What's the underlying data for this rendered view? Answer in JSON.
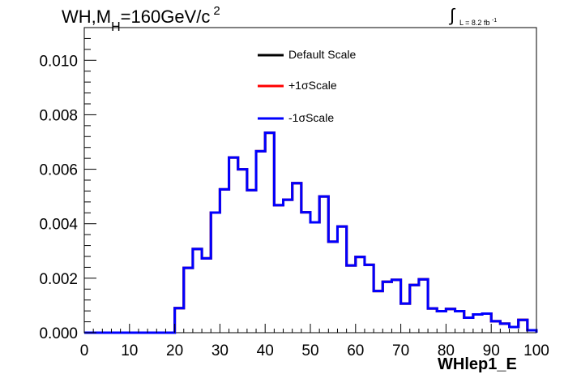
{
  "title_prefix": "WH,M",
  "title_sub": "H",
  "title_value": "=160GeV/c",
  "title_sup": "2",
  "lumi_label": "L = 8.2 fb",
  "lumi_exp": "-1",
  "colors": {
    "default": "#000000",
    "plus": "#ff0000",
    "minus": "#0000ff",
    "frame": "#000000"
  },
  "chart_data": {
    "type": "line",
    "xlabel": "WHlep1_E",
    "xlim": [
      0,
      100
    ],
    "ylim": [
      0,
      0.0112
    ],
    "x_ticks": [
      0,
      10,
      20,
      30,
      40,
      50,
      60,
      70,
      80,
      90,
      100
    ],
    "x_tick_labels": [
      "0",
      "10",
      "20",
      "30",
      "40",
      "50",
      "60",
      "70",
      "80",
      "90",
      "100"
    ],
    "y_ticks": [
      0,
      0.002,
      0.004,
      0.006,
      0.008,
      0.01
    ],
    "y_tick_labels": [
      "0.000",
      "0.002",
      "0.004",
      "0.006",
      "0.008",
      "0.010"
    ],
    "bin_edges": [
      0,
      2,
      4,
      6,
      8,
      10,
      12,
      14,
      16,
      18,
      20,
      22,
      24,
      26,
      28,
      30,
      32,
      34,
      36,
      38,
      40,
      42,
      44,
      46,
      48,
      50,
      52,
      54,
      56,
      58,
      60,
      62,
      64,
      66,
      68,
      70,
      72,
      74,
      76,
      78,
      80,
      82,
      84,
      86,
      88,
      90,
      92,
      94,
      96,
      98,
      100
    ],
    "legend": [
      "Default Scale",
      "+1σScale",
      "-1σScale"
    ],
    "series": [
      {
        "name": "Default Scale",
        "color": "#000000",
        "values": [
          0,
          0,
          0,
          0,
          0,
          0,
          0,
          0,
          0,
          0,
          0.0009,
          0.00238,
          0.00307,
          0.00273,
          0.00441,
          0.00526,
          0.00643,
          0.006,
          0.00523,
          0.00666,
          0.00734,
          0.00468,
          0.00488,
          0.00549,
          0.00442,
          0.00405,
          0.005,
          0.00334,
          0.0039,
          0.00247,
          0.00278,
          0.00249,
          0.00153,
          0.00187,
          0.00194,
          0.00107,
          0.00175,
          0.00196,
          0.00089,
          0.00079,
          0.00087,
          0.00079,
          0.00055,
          0.00067,
          0.0007,
          0.00042,
          0.00033,
          0.00021,
          0.00047,
          9e-05
        ]
      },
      {
        "name": "+1σScale",
        "color": "#ff0000",
        "values": [
          0,
          0,
          0,
          0,
          0,
          0,
          0,
          0,
          0,
          0,
          0.0009,
          0.00238,
          0.00307,
          0.00273,
          0.00441,
          0.00526,
          0.00643,
          0.006,
          0.00523,
          0.00666,
          0.00734,
          0.00468,
          0.00488,
          0.00549,
          0.00442,
          0.00405,
          0.005,
          0.00334,
          0.0039,
          0.00247,
          0.00278,
          0.00249,
          0.00153,
          0.00187,
          0.00194,
          0.00107,
          0.00175,
          0.00196,
          0.00089,
          0.00079,
          0.00087,
          0.00079,
          0.00055,
          0.00067,
          0.0007,
          0.00042,
          0.00033,
          0.00021,
          0.00047,
          9e-05
        ]
      },
      {
        "name": "-1σScale",
        "color": "#0000ff",
        "values": [
          0,
          0,
          0,
          0,
          0,
          0,
          0,
          0,
          0,
          0,
          0.0009,
          0.00238,
          0.00307,
          0.00273,
          0.00441,
          0.00526,
          0.00643,
          0.006,
          0.00523,
          0.00666,
          0.00734,
          0.00468,
          0.00488,
          0.00549,
          0.00442,
          0.00405,
          0.005,
          0.00334,
          0.0039,
          0.00247,
          0.00278,
          0.00249,
          0.00153,
          0.00187,
          0.00194,
          0.00107,
          0.00175,
          0.00196,
          0.00089,
          0.00079,
          0.00087,
          0.00079,
          0.00055,
          0.00067,
          0.0007,
          0.00042,
          0.00033,
          0.00021,
          0.00047,
          9e-05
        ]
      }
    ]
  }
}
